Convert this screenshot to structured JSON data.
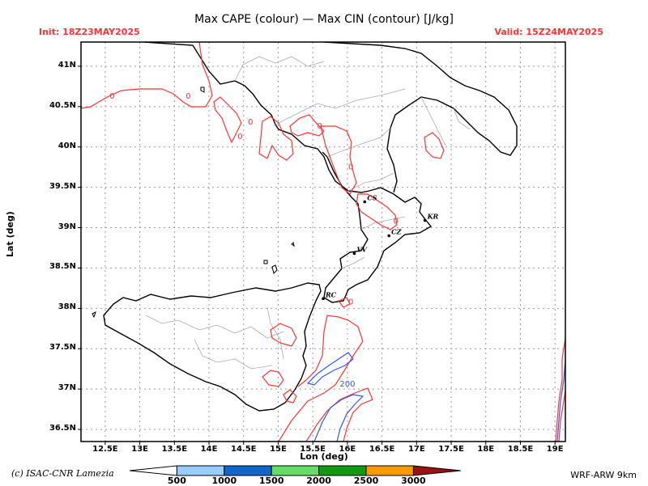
{
  "header": {
    "title": "Max CAPE (colour) — Max CIN (contour) [J/kg]",
    "init": "Init: 18Z23MAY2025",
    "valid": "Valid: 15Z24MAY2025"
  },
  "axes": {
    "xlabel": "Lon (deg)",
    "ylabel": "Lat (deg)",
    "lat_ticks": [
      "41N",
      "40.5N",
      "40N",
      "39.5N",
      "39N",
      "38.5N",
      "38N",
      "37.5N",
      "37N",
      "36.5N"
    ],
    "lon_ticks": [
      "12.5E",
      "13E",
      "13.5E",
      "14E",
      "14.5E",
      "15E",
      "15.5E",
      "16E",
      "16.5E",
      "17E",
      "17.5E",
      "18E",
      "18.5E",
      "19E"
    ],
    "lat_range": [
      36.35,
      41.3
    ],
    "lon_range": [
      12.15,
      19.15
    ]
  },
  "cities": [
    {
      "label": "CS",
      "lon": 16.25,
      "lat": 39.32
    },
    {
      "label": "KR",
      "lon": 17.12,
      "lat": 39.09
    },
    {
      "label": "CZ",
      "lon": 16.6,
      "lat": 38.9
    },
    {
      "label": "VV",
      "lon": 16.1,
      "lat": 38.68
    },
    {
      "label": "RC",
      "lon": 15.65,
      "lat": 38.12
    }
  ],
  "contour_labels": [
    {
      "text": "0",
      "color": "#ff3333",
      "lon": 12.6,
      "lat": 40.6
    },
    {
      "text": "0",
      "color": "#ff3333",
      "lon": 13.7,
      "lat": 40.6
    },
    {
      "text": "0",
      "color": "#ff3333",
      "lon": 14.45,
      "lat": 40.1
    },
    {
      "text": "0",
      "color": "#ff3333",
      "lon": 14.6,
      "lat": 40.28
    },
    {
      "text": "0",
      "color": "#ff3333",
      "lon": 15.6,
      "lat": 40.23
    },
    {
      "text": "0",
      "color": "#ff3333",
      "lon": 16.05,
      "lat": 39.72
    },
    {
      "text": "0",
      "color": "#ff3333",
      "lon": 16.7,
      "lat": 39.05
    },
    {
      "text": "0",
      "color": "#ff3333",
      "lon": 16.05,
      "lat": 38.05
    },
    {
      "text": "200",
      "color": "#3355ff",
      "lon": 16.0,
      "lat": 37.03
    }
  ],
  "colorbar": {
    "labels": [
      "500",
      "1000",
      "1500",
      "2000",
      "2500",
      "3000"
    ],
    "colors": [
      "#ffffff",
      "#99ccff",
      "#1166cc",
      "#66dd66",
      "#119911",
      "#ff9900",
      "#991111"
    ]
  },
  "footer": {
    "credit": "(c) ISAC-CNR Lamezia",
    "model": "WRF-ARW  9km"
  }
}
